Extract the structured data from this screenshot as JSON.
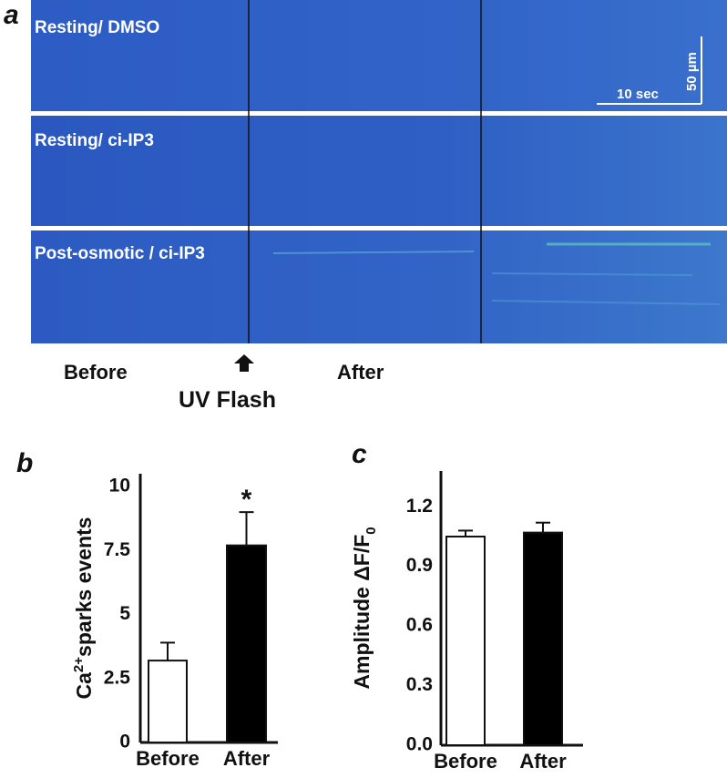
{
  "panel_labels": [
    "a",
    "b",
    "c"
  ],
  "panel_a": {
    "rows": [
      "Resting/ DMSO",
      "Resting/ ci-IP3",
      "Post-osmotic / ci-IP3"
    ],
    "scale_x": "10 sec",
    "scale_y": "50 µm",
    "before": "Before",
    "flash": "UV Flash",
    "after": "After"
  },
  "chart_data": [
    {
      "type": "bar",
      "y_label": [
        "Ca",
        "2+",
        "sparks events"
      ],
      "categories": [
        "Before",
        "After"
      ],
      "values": [
        3.2,
        7.7
      ],
      "errors": [
        0.7,
        1.3
      ],
      "colors": [
        "#ffffff",
        "#000000"
      ],
      "annotations": [
        null,
        "*"
      ],
      "ylim": [
        0,
        10.5
      ],
      "yticks": [
        0,
        2.5,
        5,
        7.5,
        10
      ]
    },
    {
      "type": "bar",
      "y_label": [
        "Amplitude ΔF/F",
        "0"
      ],
      "categories": [
        "Before",
        "After"
      ],
      "values": [
        1.05,
        1.07
      ],
      "errors": [
        0.03,
        0.05
      ],
      "colors": [
        "#ffffff",
        "#000000"
      ],
      "ylim": [
        0,
        1.38
      ],
      "yticks": [
        {
          "value": 0,
          "label": "0.0"
        },
        0.3,
        0.6,
        0.9,
        1.2
      ]
    }
  ]
}
